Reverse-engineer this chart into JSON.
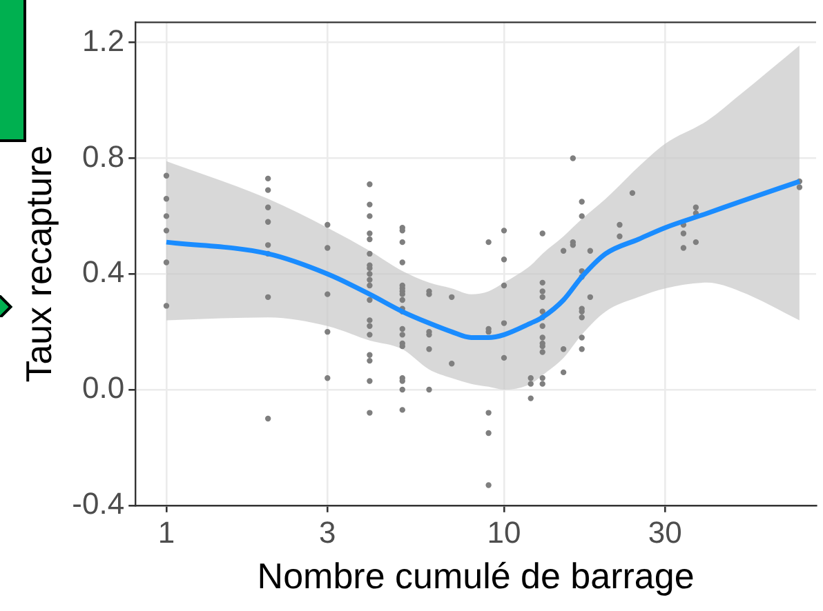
{
  "chart_data": {
    "type": "scatter",
    "xlabel": "Nombre cumulé de barrage",
    "ylabel": "Taux recapture",
    "log": "x",
    "xlim": [
      0.81,
      84
    ],
    "xticks": [
      1,
      3,
      10,
      30
    ],
    "ylim": [
      -0.4,
      1.27
    ],
    "yticks": [
      {
        "value": -0.4,
        "label": "-0.4"
      },
      {
        "value": 0,
        "label": "0.0"
      },
      {
        "value": 0.4,
        "label": "0.4"
      },
      {
        "value": 0.8,
        "label": "0.8"
      },
      {
        "value": 1.2,
        "label": "1.2"
      }
    ],
    "grid": true,
    "legend": false,
    "series": [
      {
        "marker": "circle",
        "color": "#7f7f7f",
        "x": [
          1,
          1,
          1,
          1,
          1,
          1,
          2,
          2,
          2,
          2,
          2,
          2,
          2,
          2,
          3,
          3,
          3,
          3,
          3,
          4,
          4,
          4,
          4,
          4,
          4,
          4,
          4,
          4,
          4,
          4,
          4,
          4,
          4,
          4,
          4,
          4,
          4,
          4,
          5,
          5,
          5,
          5,
          5,
          5,
          5,
          5,
          5,
          5,
          5,
          5,
          5,
          5,
          5,
          5,
          5,
          5,
          5,
          6,
          6,
          6,
          6,
          6,
          6,
          7,
          7,
          9,
          9,
          9,
          9,
          9,
          9,
          10,
          10,
          10,
          10,
          10,
          12,
          12,
          12,
          13,
          13,
          13,
          13,
          13,
          13,
          13,
          13,
          13,
          13,
          13,
          13,
          13,
          15,
          15,
          15,
          16,
          16,
          16,
          17,
          17,
          17,
          17,
          17,
          17,
          17,
          17,
          17,
          18,
          18,
          22,
          22,
          24,
          34,
          34,
          34,
          37,
          37,
          37,
          75,
          75
        ],
        "values": [
          0.74,
          0.66,
          0.6,
          0.55,
          0.44,
          0.29,
          0.73,
          0.69,
          0.63,
          0.58,
          0.5,
          0.47,
          0.32,
          -0.1,
          0.57,
          0.49,
          0.33,
          0.2,
          0.04,
          0.71,
          0.64,
          0.6,
          0.54,
          0.52,
          0.47,
          0.43,
          0.42,
          0.4,
          0.38,
          0.36,
          0.31,
          0.24,
          0.22,
          0.19,
          0.12,
          0.1,
          0.03,
          -0.08,
          0.56,
          0.55,
          0.51,
          0.44,
          0.36,
          0.35,
          0.34,
          0.33,
          0.31,
          0.28,
          0.27,
          0.21,
          0.19,
          0.16,
          0.15,
          0.04,
          0.03,
          0,
          -0.07,
          0.34,
          0.33,
          0.2,
          0.19,
          0.14,
          0,
          0.32,
          0.09,
          0.51,
          0.21,
          0.2,
          -0.08,
          -0.15,
          -0.33,
          0.55,
          0.45,
          0.36,
          0.23,
          0.11,
          0.04,
          0.02,
          -0.03,
          0.54,
          0.37,
          0.34,
          0.32,
          0.27,
          0.25,
          0.22,
          0.18,
          0.16,
          0.15,
          0.13,
          0.04,
          0.02,
          0.48,
          0.14,
          0.06,
          0.8,
          0.51,
          0.5,
          0.65,
          0.6,
          0.41,
          0.39,
          0.28,
          0.27,
          0.25,
          0.18,
          0.14,
          0.48,
          0.32,
          0.57,
          0.53,
          0.68,
          0.57,
          0.54,
          0.49,
          0.63,
          0.61,
          0.51,
          0.72,
          0.7
        ]
      },
      {
        "type": "line",
        "color": "#1a8cff",
        "x": [
          1,
          2,
          3,
          4,
          5,
          6,
          7,
          8,
          9,
          10,
          12,
          13,
          15,
          17,
          20,
          25,
          30,
          40,
          50,
          75
        ],
        "values": [
          0.51,
          0.47,
          0.4,
          0.33,
          0.27,
          0.23,
          0.2,
          0.18,
          0.18,
          0.19,
          0.23,
          0.25,
          0.31,
          0.39,
          0.47,
          0.52,
          0.56,
          0.61,
          0.65,
          0.72
        ],
        "lower": [
          0.24,
          0.25,
          0.22,
          0.17,
          0.14,
          0.07,
          0.04,
          0.02,
          0.01,
          0,
          0.02,
          0.05,
          0.11,
          0.19,
          0.27,
          0.32,
          0.35,
          0.37,
          0.34,
          0.24
        ],
        "upper": [
          0.79,
          0.66,
          0.56,
          0.48,
          0.41,
          0.37,
          0.35,
          0.33,
          0.34,
          0.37,
          0.43,
          0.47,
          0.53,
          0.59,
          0.66,
          0.77,
          0.85,
          0.93,
          1.02,
          1.19
        ]
      }
    ]
  }
}
